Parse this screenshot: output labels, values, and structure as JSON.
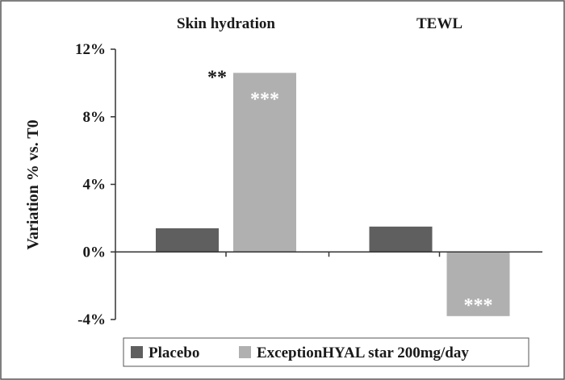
{
  "chart_data": {
    "type": "bar",
    "categories": [
      "Skin hydration",
      "TEWL"
    ],
    "series": [
      {
        "name": "Placebo",
        "values": [
          1.4,
          1.5
        ],
        "color": "#5f5f5f"
      },
      {
        "name": "ExceptionHYAL star 200mg/day",
        "values": [
          10.6,
          -3.8
        ],
        "color": "#b0b0b0"
      }
    ],
    "ylabel": "Variation % vs. T0",
    "ylim": [
      -4,
      12
    ],
    "yticks": [
      "-4%",
      "0%",
      "4%",
      "8%",
      "12%"
    ],
    "ytick_values": [
      -4,
      0,
      4,
      8,
      12
    ],
    "grid": false,
    "legend_position": "bottom",
    "annotations": [
      {
        "text": "**",
        "category": 0,
        "series": 1,
        "placement": "outside-left-top"
      },
      {
        "text": "***",
        "category": 0,
        "series": 1,
        "placement": "inside-top"
      },
      {
        "text": "***",
        "category": 1,
        "series": 1,
        "placement": "inside-bottom"
      }
    ]
  }
}
